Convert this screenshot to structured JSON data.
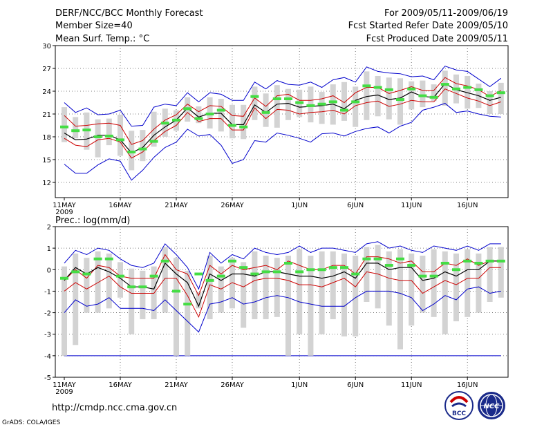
{
  "header": {
    "title": "DERF/NCC/BCC Monthly Forecast",
    "member_size": "Member Size=40",
    "period": "For 2009/05/11-2009/06/19",
    "started": "Fcst Started Refer Date 2009/05/10",
    "produced": "Fcst Produced Date 2009/05/11"
  },
  "footer": {
    "url": "http://cmdp.ncc.cma.gov.cn",
    "credit": "GrADS: COLA/IGES",
    "logo_bcc": "BCC",
    "logo_ncc": "NCC"
  },
  "colors": {
    "envelope": "#0000cc",
    "spread": "#cc0000",
    "mean": "#000000",
    "bar": "#d3d3d3",
    "marker": "#44dd44",
    "grid": "#555555"
  },
  "chart_data": [
    {
      "type": "line",
      "title": "Mean Surf. Temp.: °C",
      "ylim": [
        10,
        30
      ],
      "yticks": [
        "12",
        "15",
        "18",
        "21",
        "24",
        "27",
        "30"
      ],
      "xticks": [
        "11MAY",
        "16MAY",
        "21MAY",
        "26MAY",
        "1JUN",
        "6JUN",
        "11JUN",
        "16JUN"
      ],
      "xtick_day_index": [
        0,
        5,
        10,
        15,
        21,
        26,
        31,
        36
      ],
      "year_label": "2009",
      "days": 40,
      "series": [
        {
          "name": "max",
          "values": [
            22.5,
            21.2,
            21.8,
            20.9,
            21.0,
            21.5,
            19.4,
            19.5,
            21.9,
            22.3,
            22.1,
            23.8,
            22.6,
            23.8,
            23.6,
            22.8,
            22.8,
            25.2,
            24.3,
            25.4,
            24.9,
            24.8,
            25.2,
            24.5,
            25.5,
            25.8,
            25.2,
            27.2,
            26.6,
            26.4,
            26.3,
            25.9,
            26.0,
            25.5,
            27.3,
            26.8,
            26.6,
            25.6,
            24.6,
            25.7
          ]
        },
        {
          "name": "upper",
          "values": [
            20.8,
            19.4,
            19.5,
            19.7,
            19.8,
            19.5,
            17.0,
            17.5,
            19.0,
            20.2,
            20.9,
            22.3,
            21.3,
            22.1,
            22.0,
            20.8,
            20.7,
            23.1,
            22.0,
            23.4,
            23.6,
            22.8,
            22.8,
            23.0,
            23.4,
            22.5,
            23.8,
            24.5,
            24.5,
            23.7,
            24.1,
            24.6,
            24.1,
            24.1,
            25.8,
            25.0,
            24.7,
            24.2,
            23.3,
            24.1
          ]
        },
        {
          "name": "mean",
          "values": [
            18.5,
            17.6,
            17.7,
            18.2,
            18.2,
            17.6,
            15.9,
            16.6,
            18.2,
            19.3,
            20.2,
            21.8,
            20.6,
            21.1,
            21.1,
            19.6,
            19.6,
            22.2,
            21.2,
            22.3,
            22.4,
            21.9,
            22.0,
            22.1,
            22.3,
            21.7,
            22.8,
            23.3,
            23.5,
            22.9,
            23.1,
            23.9,
            23.3,
            23.2,
            25.0,
            24.2,
            23.8,
            23.4,
            22.8,
            23.2
          ]
        },
        {
          "name": "lower",
          "values": [
            17.8,
            16.9,
            16.7,
            17.6,
            17.8,
            17.3,
            15.2,
            16.0,
            17.5,
            18.7,
            19.5,
            21.2,
            20.0,
            20.4,
            20.4,
            18.9,
            18.9,
            21.8,
            20.4,
            21.6,
            21.5,
            21.0,
            21.2,
            21.3,
            21.5,
            21.0,
            22.1,
            22.5,
            22.7,
            22.0,
            22.3,
            22.8,
            22.6,
            22.6,
            24.3,
            23.7,
            23.1,
            22.7,
            22.1,
            22.6
          ]
        },
        {
          "name": "min",
          "values": [
            14.4,
            13.2,
            13.2,
            14.3,
            15.1,
            14.8,
            12.3,
            13.6,
            15.3,
            16.6,
            17.3,
            19.0,
            18.1,
            18.3,
            16.9,
            14.5,
            15.0,
            17.5,
            17.3,
            18.5,
            18.2,
            17.8,
            17.3,
            18.4,
            18.5,
            18.1,
            18.7,
            19.1,
            19.3,
            18.5,
            19.4,
            19.9,
            21.5,
            21.9,
            22.4,
            21.2,
            21.4,
            21.0,
            20.7,
            20.6
          ]
        }
      ],
      "bars": {
        "low": [
          17.3,
          17.8,
          16.3,
          15.3,
          16.9,
          15.5,
          13.6,
          14.8,
          16.7,
          18.0,
          18.8,
          20.0,
          19.8,
          19.1,
          18.7,
          17.8,
          17.7,
          20.2,
          19.3,
          19.2,
          20.2,
          20.6,
          19.9,
          19.7,
          19.6,
          20.1,
          19.3,
          20.2,
          20.7,
          20.3,
          19.6,
          21.6,
          21.9,
          22.7,
          22.1,
          22.4,
          21.7,
          21.8,
          21.0,
          21.0
        ]
      },
      "markers": [
        19.3,
        18.8,
        18.9,
        18.0,
        18.1,
        17.6,
        16.0,
        16.4,
        17.4,
        19.8,
        20.2,
        21.7,
        20.4,
        21.0,
        21.5,
        19.5,
        19.3,
        23.3,
        21.2,
        23.0,
        23.0,
        22.5,
        22.1,
        22.3,
        22.6,
        21.5,
        22.6,
        24.7,
        24.5,
        24.2,
        22.9,
        24.3,
        23.4,
        23.2,
        24.9,
        24.3,
        24.5,
        24.2,
        23.4,
        23.8
      ]
    },
    {
      "type": "line",
      "title": "Prec.: log(mm/d)",
      "ylim": [
        -5,
        2
      ],
      "yticks": [
        "-5",
        "-4",
        "-3",
        "-2",
        "-1",
        "0",
        "1",
        "2"
      ],
      "xticks": [
        "11MAY",
        "16MAY",
        "21MAY",
        "26MAY",
        "1JUN",
        "6JUN",
        "11JUN",
        "16JUN"
      ],
      "xtick_day_index": [
        0,
        5,
        10,
        15,
        21,
        26,
        31,
        36
      ],
      "year_label": "2009",
      "days": 40,
      "series": [
        {
          "name": "max",
          "values": [
            0.3,
            0.9,
            0.7,
            1.0,
            0.9,
            0.5,
            0.2,
            0.1,
            0.3,
            1.2,
            0.7,
            0.1,
            -0.9,
            0.8,
            0.3,
            0.7,
            0.5,
            1.0,
            0.8,
            0.7,
            0.8,
            1.1,
            0.8,
            1.0,
            1.0,
            0.9,
            0.8,
            1.2,
            1.3,
            1.0,
            1.1,
            0.9,
            0.8,
            1.1,
            1.0,
            0.9,
            1.1,
            0.9,
            1.2,
            1.2
          ]
        },
        {
          "name": "upper",
          "values": [
            -0.5,
            0.0,
            -0.4,
            0.2,
            0.1,
            -0.3,
            -0.4,
            -0.4,
            -0.4,
            0.7,
            0.0,
            -0.2,
            -1.2,
            0.2,
            -0.2,
            0.2,
            0.0,
            0.1,
            0.2,
            0.0,
            0.4,
            0.2,
            0.0,
            0.0,
            0.2,
            0.2,
            -0.2,
            0.6,
            0.6,
            0.5,
            0.3,
            0.4,
            -0.1,
            -0.1,
            0.3,
            0.2,
            0.5,
            0.2,
            0.4,
            0.4
          ]
        },
        {
          "name": "mean",
          "values": [
            -0.5,
            0.1,
            -0.2,
            0.1,
            -0.1,
            -0.4,
            -0.8,
            -0.8,
            -0.9,
            0.3,
            -0.2,
            -0.6,
            -1.7,
            -0.2,
            -0.5,
            -0.2,
            -0.2,
            -0.3,
            -0.1,
            -0.1,
            -0.2,
            -0.3,
            -0.3,
            -0.4,
            -0.3,
            -0.1,
            -0.4,
            0.3,
            0.3,
            0.0,
            0.1,
            0.1,
            -0.5,
            -0.4,
            -0.1,
            -0.3,
            0.0,
            0.0,
            0.4,
            0.4
          ]
        },
        {
          "name": "lower",
          "values": [
            -1.0,
            -0.6,
            -0.9,
            -0.6,
            -0.3,
            -0.8,
            -1.1,
            -1.1,
            -1.1,
            -0.4,
            -0.4,
            -1.2,
            -2.2,
            -0.7,
            -0.9,
            -0.6,
            -0.8,
            -0.5,
            -0.4,
            -0.4,
            -0.5,
            -0.7,
            -0.7,
            -0.8,
            -0.6,
            -0.4,
            -0.8,
            -0.1,
            -0.2,
            -0.4,
            -0.5,
            -0.5,
            -1.1,
            -0.8,
            -0.5,
            -0.7,
            -0.4,
            -0.4,
            0.1,
            0.1
          ]
        },
        {
          "name": "min",
          "values": [
            -2.0,
            -1.4,
            -1.7,
            -1.6,
            -1.3,
            -1.8,
            -1.8,
            -1.8,
            -1.9,
            -1.4,
            -1.9,
            -2.4,
            -2.9,
            -1.6,
            -1.5,
            -1.3,
            -1.6,
            -1.5,
            -1.3,
            -1.2,
            -1.3,
            -1.5,
            -1.6,
            -1.7,
            -1.7,
            -1.7,
            -1.3,
            -1.0,
            -1.0,
            -1.0,
            -1.1,
            -1.3,
            -1.9,
            -1.6,
            -1.2,
            -1.4,
            -0.9,
            -0.8,
            -1.1,
            -1.0
          ]
        }
      ],
      "bars": {
        "low": [
          -4.0,
          -3.5,
          -2.0,
          -2.0,
          -1.8,
          -1.3,
          -3.0,
          -2.3,
          -2.3,
          -2.0,
          -4.0,
          -4.0,
          -1.8,
          -2.3,
          -2.0,
          -1.8,
          -2.7,
          -2.3,
          -2.3,
          -2.2,
          -4.0,
          -3.0,
          -4.0,
          -3.0,
          -2.3,
          -3.1,
          -3.1,
          -1.5,
          -1.8,
          -2.6,
          -3.7,
          -2.6,
          -2.0,
          -2.2,
          -3.0,
          -2.4,
          -2.2,
          -2.0,
          -1.5,
          -1.3
        ]
      },
      "markers": [
        -0.4,
        -0.1,
        -0.2,
        0.5,
        0.5,
        -0.3,
        -0.8,
        -0.8,
        -0.3,
        0.4,
        -1.0,
        -1.6,
        -0.2,
        -0.5,
        -0.3,
        0.4,
        0.1,
        -0.2,
        -0.1,
        -0.1,
        0.3,
        -0.1,
        0.0,
        0.0,
        0.1,
        0.1,
        -0.2,
        0.5,
        0.5,
        0.2,
        0.5,
        0.2,
        -0.3,
        -0.3,
        0.3,
        0.0,
        0.4,
        0.3,
        0.4,
        0.4
      ],
      "floor_line": -4
    }
  ]
}
